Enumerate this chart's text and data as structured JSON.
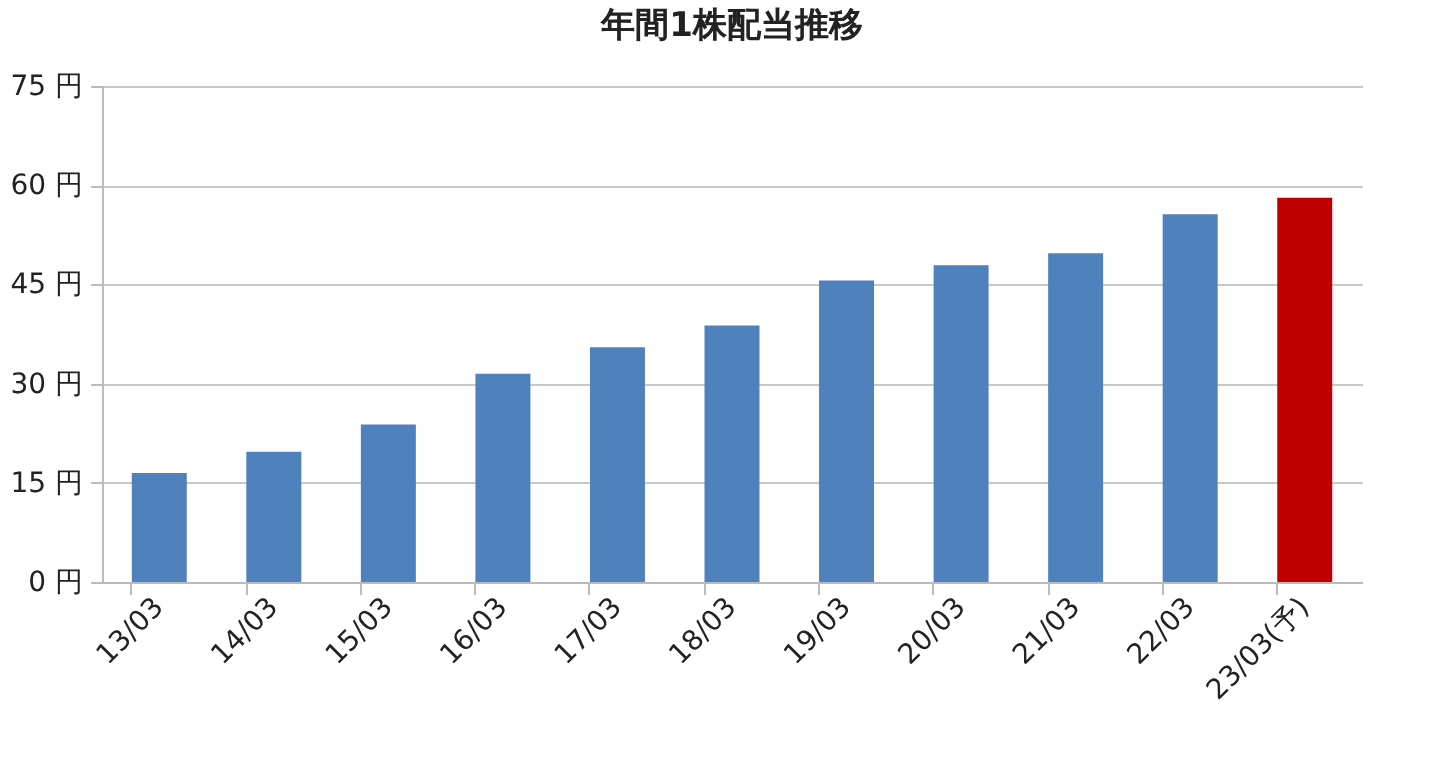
{
  "chart_data": {
    "type": "bar",
    "title": "年間1株配当推移",
    "categories": [
      "13/03",
      "14/03",
      "15/03",
      "16/03",
      "17/03",
      "18/03",
      "19/03",
      "20/03",
      "21/03",
      "22/03",
      "23/03(予)"
    ],
    "values": [
      16.5,
      19.7,
      23.8,
      31.5,
      35.5,
      38.8,
      45.6,
      47.9,
      49.7,
      55.6,
      58.1
    ],
    "colors": [
      "#4f81bd",
      "#4f81bd",
      "#4f81bd",
      "#4f81bd",
      "#4f81bd",
      "#4f81bd",
      "#4f81bd",
      "#4f81bd",
      "#4f81bd",
      "#4f81bd",
      "#c00000"
    ],
    "ylim": [
      0,
      75
    ],
    "yticks": [
      {
        "value": 0,
        "label": "0 円"
      },
      {
        "value": 15,
        "label": "15 円"
      },
      {
        "value": 30,
        "label": "30 円"
      },
      {
        "value": 45,
        "label": "45 円"
      },
      {
        "value": 60,
        "label": "60 円"
      },
      {
        "value": 75,
        "label": "75 円"
      }
    ],
    "grid": "y"
  }
}
